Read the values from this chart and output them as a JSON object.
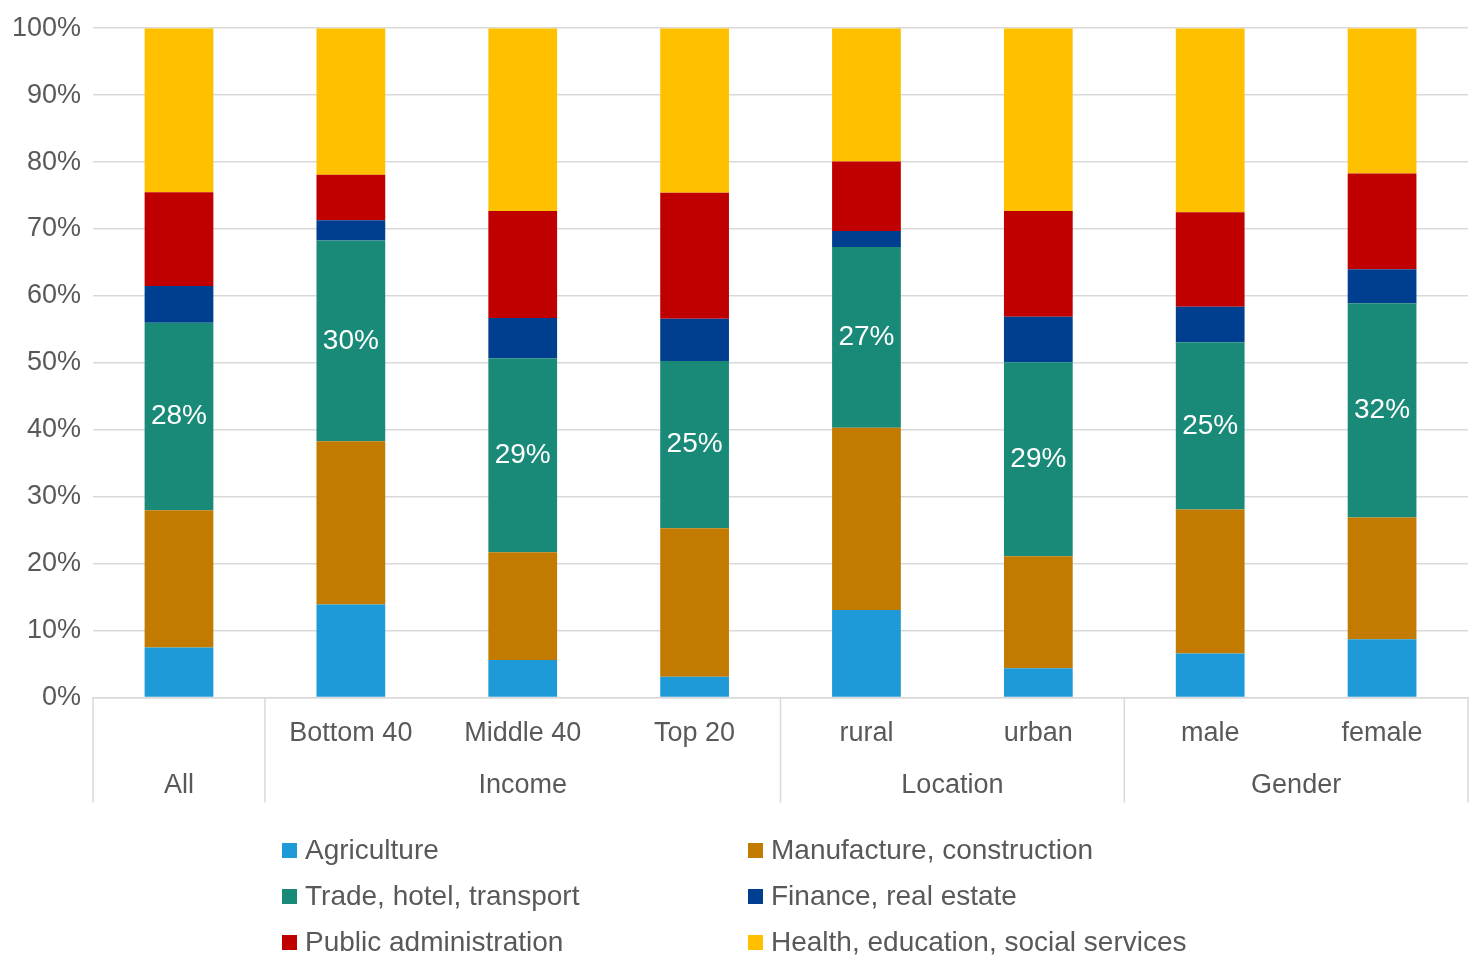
{
  "chart_data": {
    "type": "bar",
    "stacked": true,
    "categories": [
      null,
      "Bottom 40",
      "Middle 40",
      "Top 20",
      "rural",
      "urban",
      "male",
      "female"
    ],
    "annotations": [
      "All",
      "Income",
      "Location",
      "Gender"
    ],
    "series": [
      {
        "name": "Agriculture",
        "color": "#1f9ad8",
        "values": [
          7.5,
          13.9,
          5.6,
          3.1,
          13.1,
          4.4,
          6.6,
          8.7
        ]
      },
      {
        "name": "Manufacture, construction",
        "color": "#c27a00",
        "values": [
          20.5,
          24.4,
          16.1,
          22.2,
          27.2,
          16.7,
          21.5,
          18.2
        ]
      },
      {
        "name": "Trade, hotel, transport",
        "color": "#1a8a78",
        "values": [
          28,
          30,
          29,
          25,
          27,
          29,
          25,
          32
        ],
        "value_labels": [
          "28%",
          "30%",
          "29%",
          "25%",
          "27%",
          "29%",
          "25%",
          "32%"
        ]
      },
      {
        "name": "Finance, real estate",
        "color": "#003f8f",
        "values": [
          5.5,
          3,
          6,
          6.3,
          2.4,
          6.8,
          5.3,
          5.1
        ]
      },
      {
        "name": "Public administration",
        "color": "#c00000",
        "values": [
          14,
          6.8,
          16,
          18.8,
          10.4,
          15.8,
          14.1,
          14.3
        ]
      },
      {
        "name": "Health, education, social services",
        "color": "#ffc000",
        "values": [
          24.5,
          21.9,
          27.3,
          24.6,
          19.9,
          27.3,
          27.5,
          21.7
        ]
      }
    ],
    "ylim": [
      0,
      100
    ],
    "yticks": [
      {
        "value": 0,
        "label": "0%"
      },
      {
        "value": 10,
        "label": "10%"
      },
      {
        "value": 20,
        "label": "20%"
      },
      {
        "value": 30,
        "label": "30%"
      },
      {
        "value": 40,
        "label": "40%"
      },
      {
        "value": 50,
        "label": "50%"
      },
      {
        "value": 60,
        "label": "60%"
      },
      {
        "value": 70,
        "label": "70%"
      },
      {
        "value": 80,
        "label": "80%"
      },
      {
        "value": 90,
        "label": "90%"
      },
      {
        "value": 100,
        "label": "100%"
      }
    ],
    "grid": "y",
    "legend": "bottom"
  }
}
